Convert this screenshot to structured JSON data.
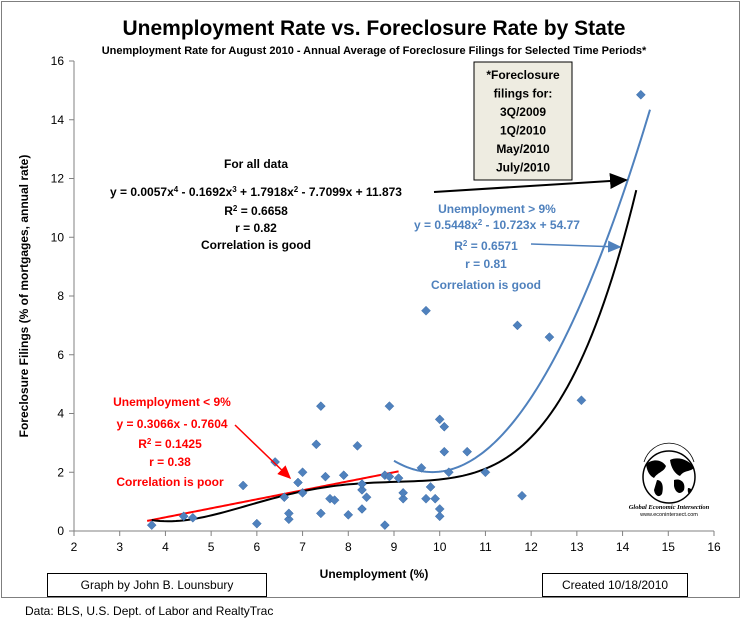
{
  "chart_data": {
    "type": "scatter",
    "title": "Unemployment Rate vs. Foreclosure Rate by State",
    "subtitle": "Unemployment Rate for August 2010  -  Annual Average of Foreclosure Filings for Selected Time Periods*",
    "xlabel": "Unemployment (%)",
    "ylabel": "Foreclosure Filings  (% of mortgages, annual rate)",
    "xlim": [
      2,
      16
    ],
    "ylim": [
      0,
      16
    ],
    "xticks": [
      "2",
      "3",
      "4",
      "5",
      "6",
      "7",
      "8",
      "9",
      "10",
      "11",
      "12",
      "13",
      "14",
      "15",
      "16"
    ],
    "yticks": [
      "0",
      "2",
      "4",
      "6",
      "8",
      "10",
      "12",
      "14",
      "16"
    ],
    "grid": false,
    "points": [
      {
        "x": 3.7,
        "y": 0.2
      },
      {
        "x": 4.4,
        "y": 0.5
      },
      {
        "x": 4.6,
        "y": 0.45
      },
      {
        "x": 5.7,
        "y": 1.55
      },
      {
        "x": 6.0,
        "y": 0.25
      },
      {
        "x": 6.4,
        "y": 2.35
      },
      {
        "x": 6.6,
        "y": 1.15
      },
      {
        "x": 6.7,
        "y": 0.4
      },
      {
        "x": 6.7,
        "y": 0.6
      },
      {
        "x": 6.9,
        "y": 1.65
      },
      {
        "x": 7.0,
        "y": 1.3
      },
      {
        "x": 7.0,
        "y": 2.0
      },
      {
        "x": 7.3,
        "y": 2.95
      },
      {
        "x": 7.4,
        "y": 4.25
      },
      {
        "x": 7.4,
        "y": 0.6
      },
      {
        "x": 7.5,
        "y": 1.85
      },
      {
        "x": 7.6,
        "y": 1.1
      },
      {
        "x": 7.7,
        "y": 1.05
      },
      {
        "x": 7.9,
        "y": 1.9
      },
      {
        "x": 8.0,
        "y": 0.55
      },
      {
        "x": 8.2,
        "y": 2.9
      },
      {
        "x": 8.3,
        "y": 1.4
      },
      {
        "x": 8.3,
        "y": 1.6
      },
      {
        "x": 8.3,
        "y": 0.75
      },
      {
        "x": 8.4,
        "y": 1.15
      },
      {
        "x": 8.8,
        "y": 0.2
      },
      {
        "x": 8.8,
        "y": 1.9
      },
      {
        "x": 8.9,
        "y": 4.25
      },
      {
        "x": 8.9,
        "y": 1.85
      },
      {
        "x": 9.1,
        "y": 1.8
      },
      {
        "x": 9.2,
        "y": 1.1
      },
      {
        "x": 9.2,
        "y": 1.3
      },
      {
        "x": 9.6,
        "y": 2.15
      },
      {
        "x": 9.7,
        "y": 7.5
      },
      {
        "x": 9.7,
        "y": 1.1
      },
      {
        "x": 9.8,
        "y": 1.5
      },
      {
        "x": 9.9,
        "y": 1.1
      },
      {
        "x": 10.0,
        "y": 3.8
      },
      {
        "x": 10.0,
        "y": 0.75
      },
      {
        "x": 10.0,
        "y": 0.5
      },
      {
        "x": 10.1,
        "y": 3.55
      },
      {
        "x": 10.1,
        "y": 2.7
      },
      {
        "x": 10.2,
        "y": 2.0
      },
      {
        "x": 10.6,
        "y": 2.7
      },
      {
        "x": 11.0,
        "y": 2.0
      },
      {
        "x": 11.7,
        "y": 7.0
      },
      {
        "x": 11.8,
        "y": 1.2
      },
      {
        "x": 12.4,
        "y": 6.6
      },
      {
        "x": 13.1,
        "y": 4.45
      },
      {
        "x": 14.4,
        "y": 14.85
      }
    ],
    "trendlines": {
      "all_data": {
        "color": "#000000",
        "range": [
          3.7,
          14.3
        ],
        "coefficients": [
          11.873,
          -7.7099,
          1.7918,
          -0.1692,
          0.0057
        ]
      },
      "above_9": {
        "color": "#4f81bd",
        "range": [
          9.0,
          14.6
        ],
        "coefficients": [
          54.77,
          -10.723,
          0.5448
        ]
      },
      "below_9": {
        "color": "#ff0000",
        "range": [
          3.6,
          9.1
        ],
        "coefficients": [
          -0.7604,
          0.3066
        ]
      }
    },
    "annotations": {
      "all_data": {
        "heading": "For all data",
        "equation_parts": [
          "y = 0.0057x",
          "4",
          " - 0.1692x",
          "3",
          " + 1.7918x",
          "2",
          " - 7.7099x + 11.873"
        ],
        "r2_label": "R",
        "r2_sup": "2",
        "r2_value": " = 0.6658",
        "r": "r = 0.82",
        "verdict": "Correlation is good",
        "color": "#000000"
      },
      "above_9": {
        "heading": "Unemployment > 9%",
        "equation_parts": [
          "y = 0.5448x",
          "2",
          " - 10.723x + 54.77"
        ],
        "r2_label": "R",
        "r2_sup": "2",
        "r2_value": " = 0.6571",
        "r": "r = 0.81",
        "verdict": "Correlation is good",
        "color": "#4f81bd"
      },
      "below_9": {
        "heading": "Unemployment < 9%",
        "equation": "y = 0.3066x - 0.7604",
        "r2_label": "R",
        "r2_sup": "2",
        "r2_value": " = 0.1425",
        "r": "r = 0.38",
        "verdict": "Correlation is poor",
        "color": "#ff0000"
      }
    },
    "footnote_box": [
      "*Foreclosure",
      "filings for:",
      "3Q/2009",
      "1Q/2010",
      "May/2010",
      "July/2010"
    ],
    "colors": {
      "marker": "#4f81bd",
      "footnote_bg": "#eeece1"
    }
  },
  "logo": {
    "top_text": "Global Economic Intersection",
    "url": "www.econintersect.com"
  },
  "credit_left": "Graph by John B. Lounsbury",
  "credit_right": "Created 10/18/2010",
  "source": "Data:  BLS, U.S. Dept. of Labor and RealtyTrac"
}
